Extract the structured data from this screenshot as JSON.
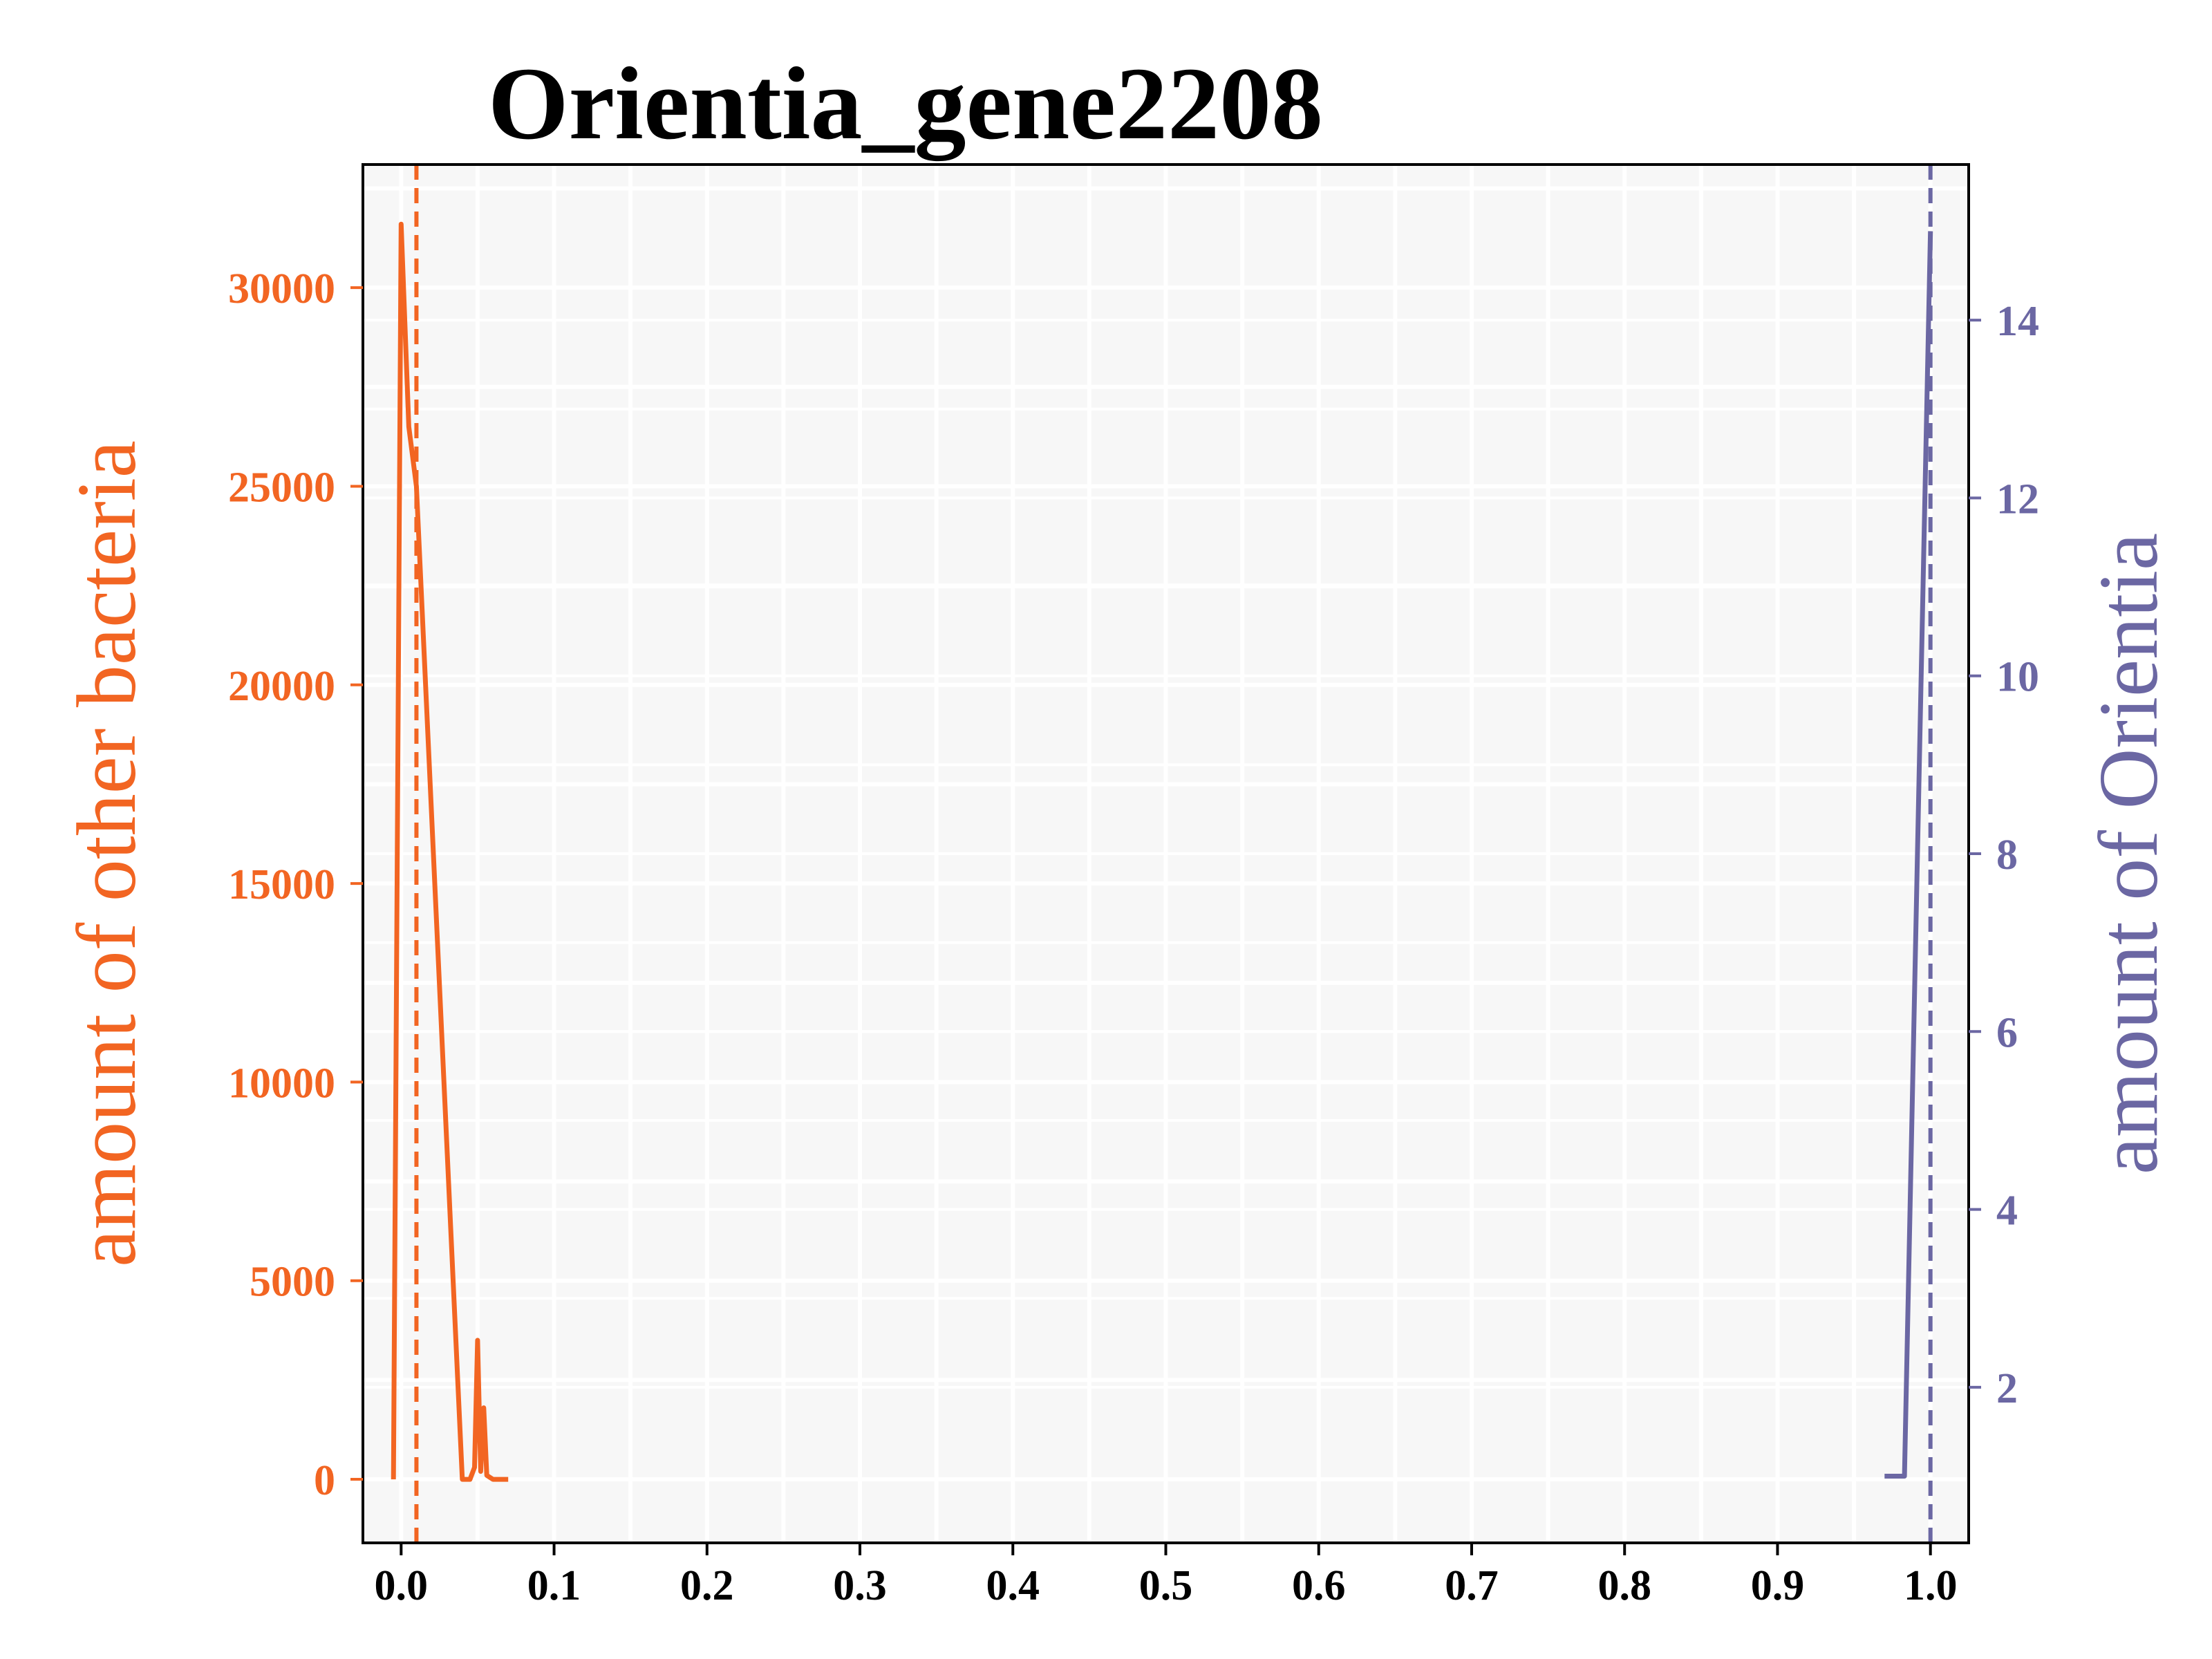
{
  "chart_data": {
    "type": "line",
    "title": "Orientia_gene2208",
    "xlabel": "",
    "xlim": [
      -0.025,
      1.025
    ],
    "x_ticks": [
      0.0,
      0.1,
      0.2,
      0.3,
      0.4,
      0.5,
      0.6,
      0.7,
      0.8,
      0.9,
      1.0
    ],
    "x_tick_labels": [
      "0.0",
      "0.1",
      "0.2",
      "0.3",
      "0.4",
      "0.5",
      "0.6",
      "0.7",
      "0.8",
      "0.9",
      "1.0"
    ],
    "grid": true,
    "background_color": "#f7f7f7",
    "y_left": {
      "label": "amount of other bacteria",
      "color": "#f26522",
      "ylim": [
        -1600,
        33100
      ],
      "ticks": [
        0,
        5000,
        10000,
        15000,
        20000,
        25000,
        30000
      ],
      "tick_labels": [
        "0",
        "5000",
        "10000",
        "15000",
        "20000",
        "25000",
        "30000"
      ]
    },
    "y_right": {
      "label": "amount of Orientia",
      "color": "#6b67a3",
      "ylim": [
        0.25,
        15.75
      ],
      "ticks": [
        2,
        4,
        6,
        8,
        10,
        12,
        14
      ],
      "tick_labels": [
        "2",
        "4",
        "6",
        "8",
        "10",
        "12",
        "14"
      ]
    },
    "series": [
      {
        "axis": "left",
        "color": "#f26522",
        "x": [
          -0.005,
          0.0,
          0.005,
          0.01,
          0.04,
          0.045,
          0.048,
          0.05,
          0.052,
          0.054,
          0.056,
          0.058,
          0.06,
          0.065,
          0.07
        ],
        "y": [
          0,
          31600,
          26500,
          25000,
          0,
          0,
          300,
          3500,
          200,
          1800,
          100,
          50,
          0,
          0,
          0
        ]
      },
      {
        "axis": "right",
        "color": "#6b67a3",
        "x": [
          0.97,
          0.983,
          1.0
        ],
        "y": [
          1,
          1,
          15
        ]
      }
    ],
    "reference_lines": [
      {
        "axis": "x",
        "x": 0.01,
        "color": "#f26522",
        "style": "dashed"
      },
      {
        "axis": "x",
        "x": 1.0,
        "color": "#6b67a3",
        "style": "dashed"
      }
    ]
  }
}
